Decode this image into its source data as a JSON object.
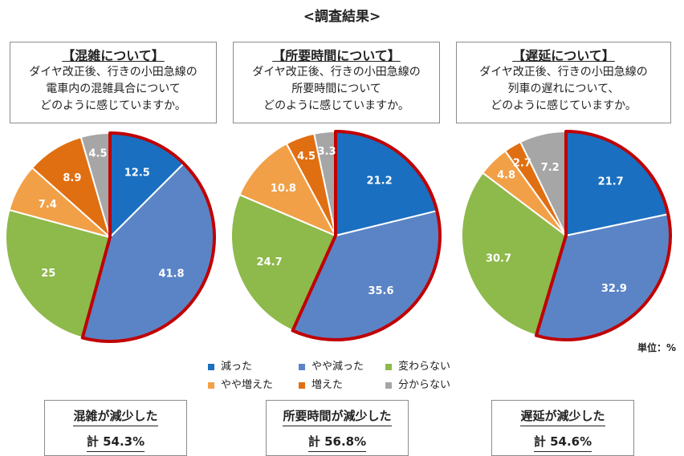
{
  "title": "<調査結果>",
  "unit_label": "単位：%",
  "panels": [
    {
      "heading": "【混雑について】",
      "body": [
        "ダイヤ改正後、行きの小田急線の",
        "電車内の混雑具合について",
        "どのように感じていますか。"
      ],
      "result_label": "混雑が減少した",
      "result_value": "計 54.3%"
    },
    {
      "heading": "【所要時間について】",
      "body": [
        "ダイヤ改正後、行きの小田急線の",
        "所要時間について",
        "どのように感じていますか。"
      ],
      "result_label": "所要時間が減少した",
      "result_value": "計 56.8%"
    },
    {
      "heading": "【遅延について】",
      "body": [
        "ダイヤ改正後、行きの小田急線の",
        "列車の遅れについて、",
        "どのように感じていますか。"
      ],
      "result_label": "遅延が減少した",
      "result_value": "計 54.6%"
    }
  ],
  "legend": [
    {
      "label": "減った",
      "color": "#1a6fc0"
    },
    {
      "label": "やや減った",
      "color": "#5b84c6"
    },
    {
      "label": "変わらない",
      "color": "#8eb94b"
    },
    {
      "label": "やや増えた",
      "color": "#f2a047"
    },
    {
      "label": "増えた",
      "color": "#e06f12"
    },
    {
      "label": "分からない",
      "color": "#a6a6a6"
    }
  ],
  "chart_data": [
    {
      "type": "pie",
      "title": "【混雑について】",
      "categories": [
        "減った",
        "やや減った",
        "変わらない",
        "やや増えた",
        "増えた",
        "分からない"
      ],
      "values": [
        12.5,
        41.8,
        25,
        7.4,
        8.9,
        4.5
      ],
      "highlighted_group": [
        "減った",
        "やや減った"
      ],
      "highlight_total": 54.3
    },
    {
      "type": "pie",
      "title": "【所要時間について】",
      "categories": [
        "減った",
        "やや減った",
        "変わらない",
        "やや増えた",
        "増えた",
        "分からない"
      ],
      "values": [
        21.2,
        35.6,
        24.7,
        10.8,
        4.5,
        3.3
      ],
      "highlighted_group": [
        "減った",
        "やや減った"
      ],
      "highlight_total": 56.8
    },
    {
      "type": "pie",
      "title": "【遅延について】",
      "categories": [
        "減った",
        "やや減った",
        "変わらない",
        "やや増えた",
        "増えた",
        "分からない"
      ],
      "values": [
        21.7,
        32.9,
        30.7,
        4.8,
        2.7,
        7.2
      ],
      "highlighted_group": [
        "減った",
        "やや減った"
      ],
      "highlight_total": 54.6
    }
  ],
  "colors": {
    "highlight_outline": "#c00000",
    "slice_border": "#ffffff"
  }
}
